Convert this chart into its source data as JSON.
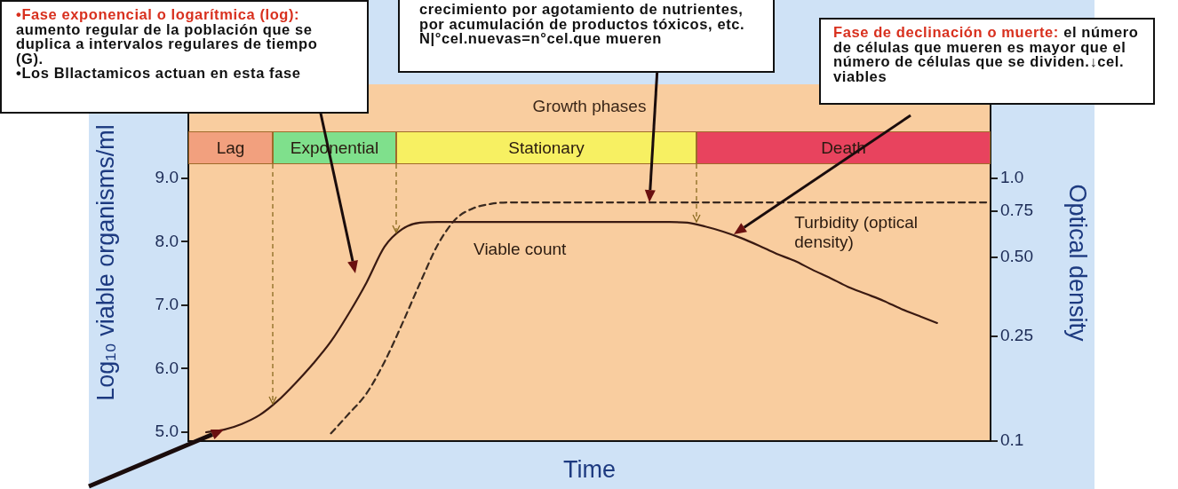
{
  "chart_data": {
    "type": "line",
    "title": "Growth phases",
    "xlabel": "Time",
    "ylabel": "Log₁₀ viable organisms/ml",
    "y2label": "Optical density",
    "categories": [
      null,
      null,
      null,
      null,
      null,
      null,
      null,
      null,
      null,
      null,
      null,
      null,
      null,
      null,
      null,
      null,
      null,
      null,
      null,
      null,
      null,
      null,
      null,
      null,
      null,
      null,
      null,
      null,
      null,
      null,
      null,
      null,
      null,
      null,
      null,
      null,
      null,
      null,
      null,
      null,
      null,
      null,
      null,
      null,
      null,
      null
    ],
    "series": [
      {
        "name": "Viable count",
        "color": "#3a1a12",
        "line_style": "solid",
        "values": [
          null,
          5.0,
          5.04,
          5.13,
          5.27,
          5.49,
          5.77,
          6.08,
          6.43,
          6.87,
          7.36,
          7.92,
          8.2,
          8.3,
          8.31,
          8.31,
          8.31,
          8.31,
          8.31,
          8.31,
          8.31,
          8.31,
          8.31,
          8.31,
          8.31,
          8.31,
          8.31,
          8.31,
          8.3,
          8.24,
          8.16,
          8.06,
          7.94,
          7.81,
          7.7,
          7.56,
          7.43,
          7.29,
          7.18,
          7.07,
          6.94,
          6.83,
          6.72,
          null,
          null,
          null
        ]
      },
      {
        "name": "Turbidity (optical density)",
        "color": "#3a2a20",
        "line_style": "dashed",
        "axis": "y2",
        "values": [
          null,
          null,
          null,
          null,
          null,
          null,
          null,
          null,
          0.107,
          0.127,
          0.152,
          0.2,
          0.28,
          0.4,
          0.56,
          0.7,
          0.77,
          0.8,
          0.81,
          0.81,
          0.81,
          0.81,
          0.81,
          0.81,
          0.81,
          0.81,
          0.81,
          0.81,
          0.81,
          0.81,
          0.81,
          0.81,
          0.81,
          0.81,
          0.81,
          0.81,
          0.81,
          0.81,
          0.81,
          0.81,
          0.81,
          0.81,
          0.81,
          0.81,
          0.81,
          0.81
        ]
      }
    ],
    "ylim": [
      4.86,
      10.48
    ],
    "yticks": [
      {
        "value": 5,
        "label": "5.0"
      },
      {
        "value": 6,
        "label": "6.0"
      },
      {
        "value": 7,
        "label": "7.0"
      },
      {
        "value": 8,
        "label": "8.0"
      },
      {
        "value": 9,
        "label": "9.0"
      }
    ],
    "y2lim": [
      0.1,
      2.28
    ],
    "y2ticks": [
      0.1,
      0.25,
      {
        "value": 0.5,
        "label": "0.50"
      },
      0.75,
      {
        "value": 1,
        "label": "1.0"
      }
    ],
    "log": "y2",
    "grid": false,
    "legend": false,
    "marker": "none",
    "tick_labels": "y",
    "annotations": [
      "•Fase exponencial o logarítmica (log): aumento regular de la población que se duplica a intervalos regulares de tiempo (G).\n•Los Bllactamicos actuan en esta fase",
      "crecimiento por agotamiento de nutrientes, por acumulación de productos tóxicos, etc.\nN|°cel.nuevas=n°cel.que mueren",
      "Fase de declinación o muerte: el número de células que mueren es mayor que el número de células que se dividen.↓cel. viables",
      "Lag",
      "Exponential",
      "Stationary",
      "Death"
    ]
  }
}
